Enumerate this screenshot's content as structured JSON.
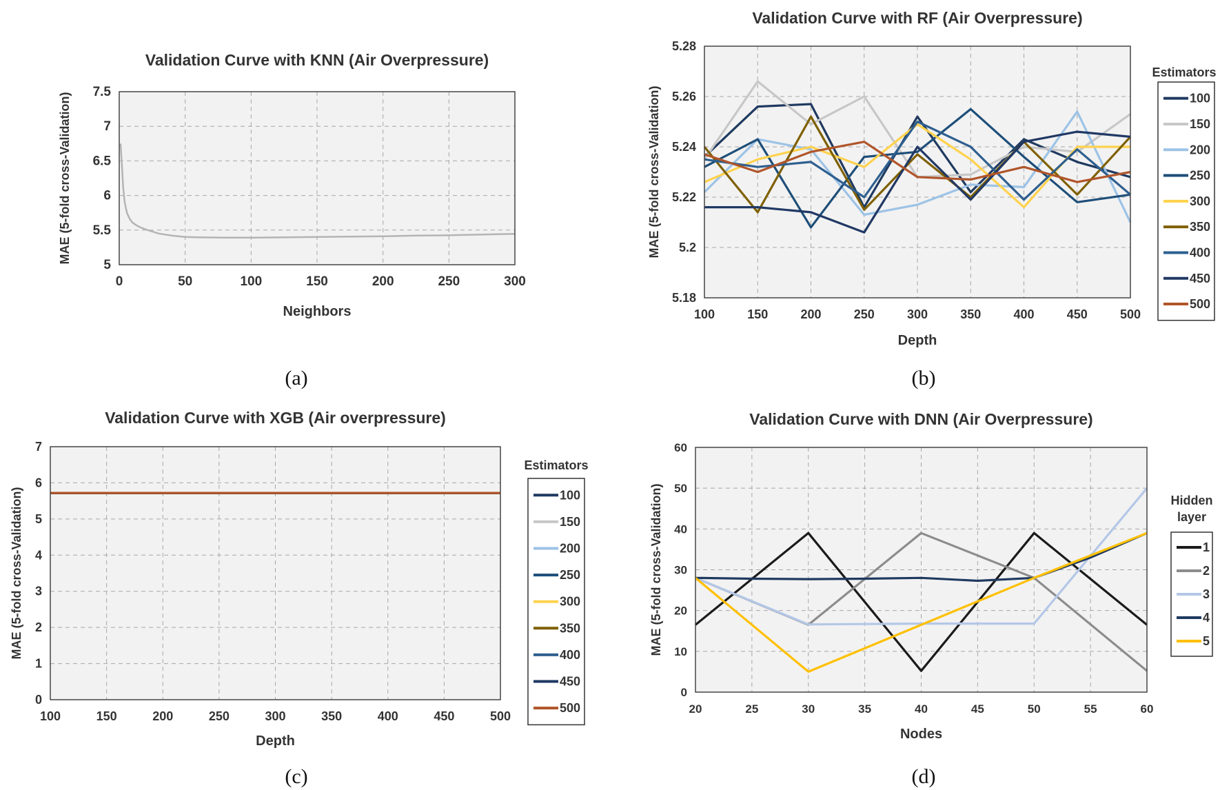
{
  "figure": {
    "captions": [
      "(a)",
      "(b)",
      "(c)",
      "(d)"
    ]
  },
  "chart_data": [
    {
      "type": "line",
      "title": "Validation Curve with KNN (Air Overpressure)",
      "xlabel": "Neighbors",
      "ylabel": "MAE (5-fold cross-Validation)",
      "xlim": [
        0,
        300
      ],
      "ylim": [
        5,
        7.5
      ],
      "xticks": [
        0,
        50,
        100,
        150,
        200,
        250,
        300
      ],
      "yticks": [
        5,
        5.5,
        6,
        6.5,
        7,
        7.5
      ],
      "ytick_labels": [
        "5",
        "5.5",
        "6",
        "6.5",
        "7",
        "7.5"
      ],
      "grid": true,
      "series": [
        {
          "color": "#b4b4b4",
          "x": [
            1,
            2,
            3,
            4,
            5,
            6,
            8,
            10,
            13,
            16,
            20,
            25,
            30,
            40,
            50,
            60,
            80,
            100,
            125,
            150,
            175,
            200,
            225,
            250,
            275,
            300
          ],
          "y": [
            6.75,
            6.45,
            6.12,
            5.92,
            5.82,
            5.74,
            5.66,
            5.61,
            5.57,
            5.54,
            5.51,
            5.48,
            5.45,
            5.42,
            5.4,
            5.395,
            5.39,
            5.39,
            5.395,
            5.4,
            5.405,
            5.41,
            5.42,
            5.425,
            5.435,
            5.445
          ]
        }
      ]
    },
    {
      "type": "line",
      "title": "Validation Curve with RF (Air Overpressure)",
      "xlabel": "Depth",
      "ylabel": "MAE (5-fold cross-Validation)",
      "xlim": [
        100,
        500
      ],
      "ylim": [
        5.18,
        5.28
      ],
      "xticks": [
        100,
        150,
        200,
        250,
        300,
        350,
        400,
        450,
        500
      ],
      "yticks": [
        5.18,
        5.2,
        5.22,
        5.24,
        5.26,
        5.28
      ],
      "ytick_labels": [
        "5.18",
        "5.2",
        "5.22",
        "5.24",
        "5.26",
        "5.28"
      ],
      "grid": true,
      "legend_title": "Estimators",
      "legend_position": "right",
      "x": [
        100,
        150,
        200,
        250,
        300,
        350,
        400,
        450,
        500
      ],
      "series": [
        {
          "name": "100",
          "color": "#1f3a60",
          "values": [
            5.236,
            5.256,
            5.257,
            5.216,
            5.252,
            5.222,
            5.243,
            5.234,
            5.228
          ]
        },
        {
          "name": "150",
          "color": "#c7c7c7",
          "values": [
            5.235,
            5.266,
            5.249,
            5.26,
            5.228,
            5.229,
            5.24,
            5.238,
            5.253
          ]
        },
        {
          "name": "200",
          "color": "#9dc3e6",
          "values": [
            5.222,
            5.243,
            5.239,
            5.213,
            5.217,
            5.225,
            5.224,
            5.254,
            5.21
          ]
        },
        {
          "name": "250",
          "color": "#1e4e79",
          "values": [
            5.232,
            5.243,
            5.208,
            5.236,
            5.238,
            5.255,
            5.236,
            5.218,
            5.221
          ]
        },
        {
          "name": "300",
          "color": "#ffd24d",
          "values": [
            5.226,
            5.235,
            5.24,
            5.232,
            5.249,
            5.235,
            5.216,
            5.24,
            5.24
          ]
        },
        {
          "name": "350",
          "color": "#7f6000",
          "values": [
            5.24,
            5.214,
            5.252,
            5.215,
            5.237,
            5.22,
            5.242,
            5.221,
            5.244
          ]
        },
        {
          "name": "400",
          "color": "#2e5f8f",
          "values": [
            5.235,
            5.232,
            5.234,
            5.22,
            5.25,
            5.24,
            5.219,
            5.239,
            5.221
          ]
        },
        {
          "name": "450",
          "color": "#203864",
          "values": [
            5.216,
            5.216,
            5.214,
            5.206,
            5.24,
            5.219,
            5.242,
            5.246,
            5.244
          ]
        },
        {
          "name": "500",
          "color": "#b0552a",
          "values": [
            5.237,
            5.23,
            5.238,
            5.242,
            5.228,
            5.227,
            5.232,
            5.226,
            5.23
          ]
        }
      ]
    },
    {
      "type": "line",
      "title": "Validation Curve with XGB (Air overpressure)",
      "xlabel": "Depth",
      "ylabel": "MAE (5-fold cross-Validation)",
      "xlim": [
        100,
        500
      ],
      "ylim": [
        0,
        7
      ],
      "xticks": [
        100,
        150,
        200,
        250,
        300,
        350,
        400,
        450,
        500
      ],
      "yticks": [
        0,
        1,
        2,
        3,
        4,
        5,
        6,
        7
      ],
      "ytick_labels": [
        "0",
        "1",
        "2",
        "3",
        "4",
        "5",
        "6",
        "7"
      ],
      "grid": true,
      "legend_title": "Estimators",
      "legend_position": "right",
      "x": [
        100,
        150,
        200,
        250,
        300,
        350,
        400,
        450,
        500
      ],
      "series": [
        {
          "name": "100",
          "color": "#1f3a60",
          "values": [
            5.72,
            5.72,
            5.72,
            5.72,
            5.72,
            5.72,
            5.72,
            5.72,
            5.72
          ]
        },
        {
          "name": "150",
          "color": "#c7c7c7",
          "values": [
            5.72,
            5.72,
            5.72,
            5.72,
            5.72,
            5.72,
            5.72,
            5.72,
            5.72
          ]
        },
        {
          "name": "200",
          "color": "#9dc3e6",
          "values": [
            5.72,
            5.72,
            5.72,
            5.72,
            5.72,
            5.72,
            5.72,
            5.72,
            5.72
          ]
        },
        {
          "name": "250",
          "color": "#1e4e79",
          "values": [
            5.72,
            5.72,
            5.72,
            5.72,
            5.72,
            5.72,
            5.72,
            5.72,
            5.72
          ]
        },
        {
          "name": "300",
          "color": "#ffd24d",
          "values": [
            5.72,
            5.72,
            5.72,
            5.72,
            5.72,
            5.72,
            5.72,
            5.72,
            5.72
          ]
        },
        {
          "name": "350",
          "color": "#7f6000",
          "values": [
            5.72,
            5.72,
            5.72,
            5.72,
            5.72,
            5.72,
            5.72,
            5.72,
            5.72
          ]
        },
        {
          "name": "400",
          "color": "#2e5f8f",
          "values": [
            5.72,
            5.72,
            5.72,
            5.72,
            5.72,
            5.72,
            5.72,
            5.72,
            5.72
          ]
        },
        {
          "name": "450",
          "color": "#203864",
          "values": [
            5.72,
            5.72,
            5.72,
            5.72,
            5.72,
            5.72,
            5.72,
            5.72,
            5.72
          ]
        },
        {
          "name": "500",
          "color": "#b0552a",
          "values": [
            5.72,
            5.72,
            5.72,
            5.72,
            5.72,
            5.72,
            5.72,
            5.72,
            5.72
          ]
        }
      ]
    },
    {
      "type": "line",
      "title": "Validation Curve with DNN (Air Overpressure)",
      "xlabel": "Nodes",
      "ylabel": "MAE (5-fold cross-Validation)",
      "xlim": [
        20,
        60
      ],
      "ylim": [
        0,
        60
      ],
      "xticks": [
        20,
        25,
        30,
        35,
        40,
        45,
        50,
        55,
        60
      ],
      "yticks": [
        0,
        10,
        20,
        30,
        40,
        50,
        60
      ],
      "ytick_labels": [
        "0",
        "10",
        "20",
        "30",
        "40",
        "50",
        "60"
      ],
      "grid": true,
      "legend_title": "Hidden layer",
      "legend_position": "right",
      "series": [
        {
          "name": "1",
          "color": "#1a1a1a",
          "x": [
            20,
            30,
            40,
            50,
            60
          ],
          "values": [
            16.5,
            39,
            5.2,
            39,
            16.5
          ]
        },
        {
          "name": "2",
          "color": "#8c8c8c",
          "x": [
            20,
            30,
            40,
            50,
            60
          ],
          "values": [
            28,
            16.5,
            39,
            28,
            5.2
          ]
        },
        {
          "name": "3",
          "color": "#b4c7e7",
          "x": [
            20,
            30,
            40,
            50,
            60
          ],
          "values": [
            28,
            16.6,
            16.8,
            16.8,
            50
          ]
        },
        {
          "name": "4",
          "color": "#1f3a60",
          "x": [
            20,
            25,
            30,
            35,
            40,
            45,
            50,
            55,
            60
          ],
          "values": [
            28,
            27.8,
            27.7,
            27.8,
            28,
            27.3,
            28,
            33,
            39
          ]
        },
        {
          "name": "5",
          "color": "#ffc000",
          "x": [
            20,
            30,
            40,
            50,
            60
          ],
          "values": [
            28,
            5,
            16.5,
            28,
            39
          ]
        }
      ]
    }
  ]
}
